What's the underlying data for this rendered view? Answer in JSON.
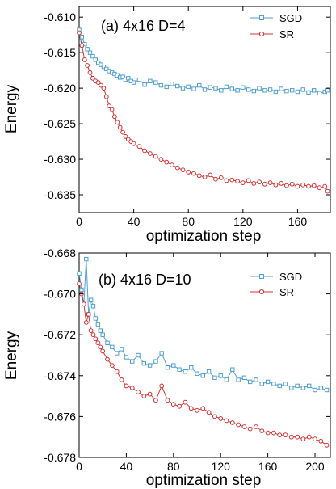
{
  "colors": {
    "SGD": "#4f9fd0",
    "SR": "#d23232"
  },
  "chart_data": [
    {
      "type": "line",
      "title": "(a)  4x16 D=4",
      "xlabel": "optimization step",
      "ylabel": "Energy",
      "xlim": [
        0,
        184
      ],
      "ylim": [
        -0.6375,
        -0.6085
      ],
      "xticks": [
        0,
        40,
        80,
        120,
        160
      ],
      "xtick_labels": [
        "0",
        "40",
        "80",
        "120",
        "160"
      ],
      "yticks": [
        -0.635,
        -0.63,
        -0.625,
        -0.62,
        -0.615,
        -0.61
      ],
      "ytick_labels": [
        "-0.635",
        "-0.630",
        "-0.625",
        "-0.620",
        "-0.615",
        "-0.610"
      ],
      "legend_position": "top-right",
      "series": [
        {
          "name": "SGD",
          "color": "#4f9fd0",
          "marker": "square",
          "x": [
            0,
            2,
            4,
            6,
            8,
            10,
            12,
            14,
            16,
            18,
            20,
            22,
            24,
            26,
            28,
            30,
            32,
            34,
            36,
            38,
            40,
            44,
            48,
            52,
            56,
            60,
            64,
            68,
            72,
            76,
            80,
            84,
            88,
            92,
            96,
            100,
            104,
            108,
            112,
            116,
            120,
            124,
            128,
            132,
            136,
            140,
            144,
            148,
            152,
            156,
            160,
            164,
            168,
            172,
            176,
            180,
            182
          ],
          "values": [
            -0.6118,
            -0.6128,
            -0.6138,
            -0.6145,
            -0.615,
            -0.6155,
            -0.616,
            -0.6164,
            -0.6167,
            -0.617,
            -0.6173,
            -0.6176,
            -0.6178,
            -0.618,
            -0.6182,
            -0.6185,
            -0.6184,
            -0.6188,
            -0.6186,
            -0.619,
            -0.6192,
            -0.6188,
            -0.6195,
            -0.619,
            -0.6192,
            -0.6196,
            -0.6198,
            -0.6194,
            -0.6197,
            -0.62,
            -0.6198,
            -0.6201,
            -0.6196,
            -0.6202,
            -0.6199,
            -0.62,
            -0.6203,
            -0.6198,
            -0.6201,
            -0.6203,
            -0.6199,
            -0.6202,
            -0.6204,
            -0.62,
            -0.6203,
            -0.6202,
            -0.6205,
            -0.6201,
            -0.6204,
            -0.6203,
            -0.6205,
            -0.6202,
            -0.6206,
            -0.6203,
            -0.6207,
            -0.6205,
            -0.6203
          ]
        },
        {
          "name": "SR",
          "color": "#d23232",
          "marker": "circle",
          "x": [
            0,
            2,
            4,
            6,
            8,
            10,
            12,
            14,
            16,
            18,
            20,
            22,
            24,
            26,
            28,
            30,
            32,
            34,
            36,
            38,
            40,
            44,
            48,
            52,
            56,
            60,
            64,
            68,
            72,
            76,
            80,
            84,
            88,
            92,
            96,
            100,
            104,
            108,
            112,
            116,
            120,
            124,
            128,
            132,
            136,
            140,
            144,
            148,
            152,
            156,
            160,
            164,
            168,
            172,
            176,
            180,
            182
          ],
          "values": [
            -0.6122,
            -0.614,
            -0.616,
            -0.6168,
            -0.6178,
            -0.6186,
            -0.619,
            -0.6192,
            -0.6196,
            -0.62,
            -0.6212,
            -0.6225,
            -0.623,
            -0.624,
            -0.6248,
            -0.6255,
            -0.6262,
            -0.6268,
            -0.6272,
            -0.6275,
            -0.6278,
            -0.6282,
            -0.6288,
            -0.6292,
            -0.6296,
            -0.63,
            -0.6304,
            -0.6308,
            -0.6312,
            -0.6315,
            -0.6318,
            -0.632,
            -0.6323,
            -0.6325,
            -0.6322,
            -0.6328,
            -0.6326,
            -0.633,
            -0.6329,
            -0.6331,
            -0.6333,
            -0.633,
            -0.6334,
            -0.6332,
            -0.6335,
            -0.6333,
            -0.6336,
            -0.6334,
            -0.6337,
            -0.6335,
            -0.6338,
            -0.6336,
            -0.6338,
            -0.6337,
            -0.634,
            -0.6338,
            -0.6345
          ]
        }
      ]
    },
    {
      "type": "line",
      "title": "(b)  4x16 D=10",
      "xlabel": "optimization step",
      "ylabel": "Energy",
      "xlim": [
        0,
        213
      ],
      "ylim": [
        -0.678,
        -0.668
      ],
      "xticks": [
        0,
        40,
        80,
        120,
        160,
        200
      ],
      "xtick_labels": [
        "0",
        "40",
        "80",
        "120",
        "160",
        "200"
      ],
      "yticks": [
        -0.678,
        -0.676,
        -0.674,
        -0.672,
        -0.67,
        -0.668
      ],
      "ytick_labels": [
        "-0.678",
        "-0.676",
        "-0.674",
        "-0.672",
        "-0.670",
        "-0.668"
      ],
      "legend_position": "top-right",
      "series": [
        {
          "name": "SGD",
          "color": "#4f9fd0",
          "marker": "square",
          "x": [
            0,
            2,
            4,
            6,
            8,
            10,
            12,
            14,
            16,
            18,
            20,
            24,
            28,
            32,
            36,
            40,
            45,
            50,
            55,
            60,
            65,
            70,
            75,
            80,
            85,
            90,
            95,
            100,
            105,
            110,
            115,
            120,
            125,
            130,
            135,
            140,
            145,
            150,
            155,
            160,
            165,
            170,
            175,
            180,
            185,
            190,
            195,
            200,
            205,
            210
          ],
          "values": [
            -0.669,
            -0.6698,
            -0.6705,
            -0.6683,
            -0.671,
            -0.6703,
            -0.6706,
            -0.6712,
            -0.6715,
            -0.6718,
            -0.672,
            -0.6724,
            -0.6726,
            -0.6729,
            -0.6727,
            -0.6731,
            -0.6733,
            -0.673,
            -0.6734,
            -0.6735,
            -0.6733,
            -0.6729,
            -0.6736,
            -0.6735,
            -0.6737,
            -0.6738,
            -0.6736,
            -0.6739,
            -0.674,
            -0.6738,
            -0.6741,
            -0.674,
            -0.6742,
            -0.6737,
            -0.6742,
            -0.6741,
            -0.6743,
            -0.6742,
            -0.6744,
            -0.6743,
            -0.6744,
            -0.6745,
            -0.6744,
            -0.6746,
            -0.6745,
            -0.6746,
            -0.6745,
            -0.6747,
            -0.6746,
            -0.6747
          ]
        },
        {
          "name": "SR",
          "color": "#d23232",
          "marker": "circle",
          "x": [
            0,
            2,
            4,
            6,
            8,
            10,
            12,
            14,
            16,
            18,
            20,
            24,
            28,
            32,
            36,
            40,
            45,
            50,
            55,
            60,
            65,
            70,
            75,
            80,
            85,
            90,
            95,
            100,
            105,
            110,
            115,
            120,
            125,
            130,
            135,
            140,
            145,
            150,
            155,
            160,
            165,
            170,
            175,
            180,
            185,
            190,
            195,
            200,
            205,
            210
          ],
          "values": [
            -0.6695,
            -0.67,
            -0.6705,
            -0.6714,
            -0.671,
            -0.6718,
            -0.672,
            -0.6722,
            -0.6724,
            -0.6726,
            -0.6728,
            -0.6732,
            -0.6735,
            -0.6738,
            -0.6742,
            -0.6745,
            -0.6746,
            -0.6748,
            -0.675,
            -0.6749,
            -0.6752,
            -0.6745,
            -0.6752,
            -0.6754,
            -0.6755,
            -0.6753,
            -0.6756,
            -0.6757,
            -0.6756,
            -0.6758,
            -0.676,
            -0.6761,
            -0.6762,
            -0.6763,
            -0.6764,
            -0.6765,
            -0.6766,
            -0.6765,
            -0.6767,
            -0.6768,
            -0.6768,
            -0.6769,
            -0.6769,
            -0.677,
            -0.677,
            -0.6771,
            -0.677,
            -0.6771,
            -0.6772,
            -0.6774
          ]
        }
      ]
    }
  ]
}
